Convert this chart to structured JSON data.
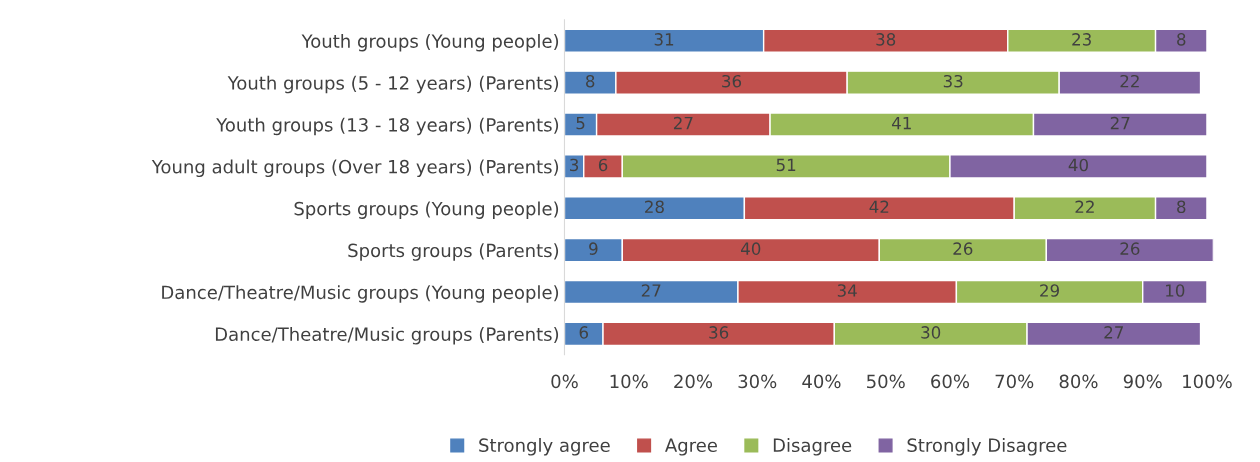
{
  "chart_data": {
    "type": "bar",
    "orientation": "horizontal",
    "stacked": true,
    "categories": [
      "Youth groups (Young people)",
      "Youth groups (5 - 12 years) (Parents)",
      "Youth groups (13 - 18 years) (Parents)",
      "Young adult groups (Over 18 years) (Parents)",
      "Sports groups (Young people)",
      "Sports groups (Parents)",
      "Dance/Theatre/Music groups (Young people)",
      "Dance/Theatre/Music groups (Parents)"
    ],
    "series": [
      {
        "name": "Strongly agree",
        "color": "#4f81bd",
        "values": [
          31,
          8,
          5,
          3,
          28,
          9,
          27,
          6
        ]
      },
      {
        "name": "Agree",
        "color": "#c0504d",
        "values": [
          38,
          36,
          27,
          6,
          42,
          40,
          34,
          36
        ]
      },
      {
        "name": "Disagree",
        "color": "#9bbb59",
        "values": [
          23,
          33,
          41,
          51,
          22,
          26,
          29,
          30
        ]
      },
      {
        "name": "Strongly Disagree",
        "color": "#8064a2",
        "values": [
          8,
          22,
          27,
          40,
          8,
          26,
          10,
          27
        ]
      }
    ],
    "xlim": [
      0,
      101
    ],
    "xticks": [
      {
        "value": 0,
        "label": "0%"
      },
      {
        "value": 10,
        "label": "10%"
      },
      {
        "value": 20,
        "label": "20%"
      },
      {
        "value": 30,
        "label": "30%"
      },
      {
        "value": 40,
        "label": "40%"
      },
      {
        "value": 50,
        "label": "50%"
      },
      {
        "value": 60,
        "label": "60%"
      },
      {
        "value": 70,
        "label": "70%"
      },
      {
        "value": 80,
        "label": "80%"
      },
      {
        "value": 90,
        "label": "90%"
      },
      {
        "value": 100,
        "label": "100%"
      }
    ],
    "data_labels": true,
    "grid": false,
    "legend": "bottom"
  }
}
